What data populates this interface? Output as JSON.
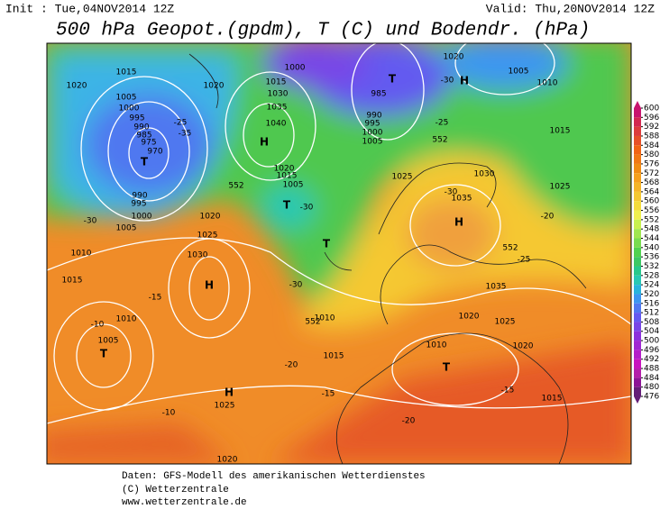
{
  "header": {
    "init": "Init : Tue,04NOV2014 12Z",
    "valid": "Valid: Thu,20NOV2014 12Z",
    "title": "500 hPa Geopot.(gpdm), T (C) und Bodendr. (hPa)"
  },
  "colorbar": {
    "ticks": [
      600,
      596,
      592,
      588,
      584,
      580,
      576,
      572,
      568,
      564,
      560,
      556,
      552,
      548,
      544,
      540,
      536,
      532,
      528,
      524,
      520,
      516,
      512,
      508,
      504,
      500,
      496,
      492,
      488,
      484,
      480,
      476
    ],
    "colors": [
      "#c8146e",
      "#d22850",
      "#dc3c3c",
      "#e65028",
      "#f06414",
      "#f07814",
      "#f08c14",
      "#f5a01e",
      "#f5b428",
      "#f5c832",
      "#f5dc3c",
      "#f0f050",
      "#c8f050",
      "#a0e650",
      "#78dc50",
      "#50d250",
      "#3cc864",
      "#28c88c",
      "#28c8b4",
      "#28b4dc",
      "#3c96f0",
      "#5078f0",
      "#645af0",
      "#7846e6",
      "#8c32dc",
      "#a028d2",
      "#b41ec8",
      "#c814be",
      "#b41eaa",
      "#8c1496",
      "#641e78"
    ]
  },
  "map": {
    "labels": [
      "H",
      "H",
      "H",
      "H",
      "H",
      "T",
      "T",
      "T",
      "T",
      "T",
      "T",
      "1015",
      "1020",
      "1005",
      "1000",
      "995",
      "990",
      "985",
      "975",
      "970",
      "1020",
      "1015",
      "1030",
      "1035",
      "1040",
      "1000",
      "985",
      "990",
      "995",
      "1000",
      "1005",
      "1020",
      "1005",
      "1010",
      "1015",
      "1025",
      "1030",
      "1035",
      "1025",
      "1020",
      "1025",
      "1030",
      "1010",
      "1015",
      "1010",
      "1005",
      "1005",
      "1010",
      "1015",
      "1010",
      "1015",
      "1020",
      "1025",
      "1035",
      "1020",
      "1025",
      "1020",
      "1000",
      "995",
      "990",
      "1005",
      "1020",
      "1015",
      "552",
      "552",
      "552",
      "552",
      "-30",
      "-30",
      "-25",
      "-25",
      "-20",
      "-15",
      "-10",
      "-20",
      "-15",
      "-10",
      "-20",
      "-15",
      "-30",
      "-35",
      "-25",
      "-30",
      "-30"
    ]
  },
  "footer": {
    "lines": [
      "Daten: GFS-Modell des amerikanischen Wetterdienstes",
      "(C) Wetterzentrale",
      "www.wetterzentrale.de"
    ]
  }
}
